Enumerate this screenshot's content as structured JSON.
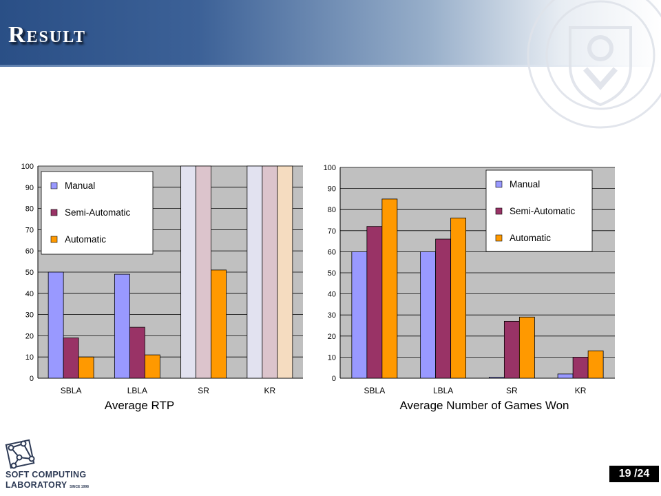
{
  "slide": {
    "title": "Result",
    "page_number": "19 /24"
  },
  "logo": {
    "line1": "SOFT COMPUTING",
    "line2": "LABORATORY",
    "since": "SINCE 1998"
  },
  "colors": {
    "manual": "#9999ff",
    "semi_automatic": "#993366",
    "automatic": "#ff9900",
    "plot_background": "#c0c0c0"
  },
  "chart_data": [
    {
      "type": "bar",
      "xlabel": "Average RTP",
      "categories": [
        "SBLA",
        "LBLA",
        "SR",
        "KR"
      ],
      "ylim": [
        0,
        100
      ],
      "yticks": [
        0,
        10,
        20,
        30,
        40,
        50,
        60,
        70,
        80,
        90,
        100
      ],
      "grid": true,
      "legend_position": "top-left",
      "series": [
        {
          "name": "Manual",
          "values": [
            50,
            49,
            100,
            100
          ]
        },
        {
          "name": "Semi-Automatic",
          "values": [
            19,
            24,
            100,
            100
          ]
        },
        {
          "name": "Automatic",
          "values": [
            10,
            11,
            51,
            100
          ]
        }
      ],
      "faded_categories": [
        "SR",
        "KR"
      ],
      "faded_note_series": "SR Automatic is not faded"
    },
    {
      "type": "bar",
      "xlabel": "Average Number of Games Won",
      "categories": [
        "SBLA",
        "LBLA",
        "SR",
        "KR"
      ],
      "ylim": [
        0,
        100
      ],
      "yticks": [
        0,
        10,
        20,
        30,
        40,
        50,
        60,
        70,
        80,
        90,
        100
      ],
      "grid": true,
      "legend_position": "top-right",
      "series": [
        {
          "name": "Manual",
          "values": [
            60,
            60,
            0.5,
            2
          ]
        },
        {
          "name": "Semi-Automatic",
          "values": [
            72,
            66,
            27,
            10
          ]
        },
        {
          "name": "Automatic",
          "values": [
            85,
            76,
            29,
            13
          ]
        }
      ]
    }
  ]
}
